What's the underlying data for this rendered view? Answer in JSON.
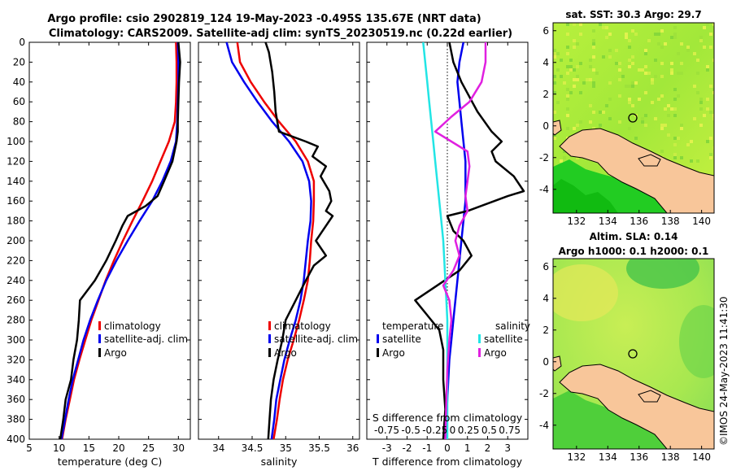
{
  "header": {
    "title_line1": "Argo profile: csio 2902819_124 19-May-2023 -0.495S 135.67E (NRT data)",
    "title_line2": "Climatology: CARS2009. Satellite-adj clim: synTS_20230519.nc (0.22d earlier)"
  },
  "colors": {
    "climatology": "#ee0000",
    "satellite": "#0000ee",
    "argo": "#000000",
    "satellite_salinity": "#22e5e5",
    "argo_salinity": "#e020e0"
  },
  "chart_data": [
    {
      "type": "line",
      "id": "temperature",
      "xlabel": "temperature (deg C)",
      "xlim": [
        5,
        32
      ],
      "xticks": [
        "5",
        "10",
        "15",
        "20",
        "25",
        "30"
      ],
      "ylim": [
        400,
        0
      ],
      "yticks": [
        "0",
        "20",
        "40",
        "60",
        "80",
        "100",
        "120",
        "140",
        "160",
        "180",
        "200",
        "220",
        "240",
        "260",
        "280",
        "300",
        "320",
        "340",
        "360",
        "380",
        "400"
      ],
      "legend": [
        "climatology",
        "satellite-adj. clim",
        "Argo"
      ],
      "series": [
        {
          "name": "climatology",
          "color": "#ee0000",
          "points": [
            [
              29.6,
              0
            ],
            [
              29.7,
              20
            ],
            [
              29.7,
              40
            ],
            [
              29.6,
              60
            ],
            [
              29.4,
              80
            ],
            [
              28.4,
              100
            ],
            [
              27.0,
              120
            ],
            [
              25.6,
              140
            ],
            [
              24.0,
              160
            ],
            [
              22.3,
              180
            ],
            [
              20.7,
              200
            ],
            [
              19.2,
              220
            ],
            [
              17.8,
              240
            ],
            [
              16.6,
              260
            ],
            [
              15.4,
              280
            ],
            [
              14.4,
              300
            ],
            [
              13.4,
              320
            ],
            [
              12.5,
              340
            ],
            [
              11.8,
              360
            ],
            [
              11.1,
              380
            ],
            [
              10.5,
              400
            ]
          ]
        },
        {
          "name": "satellite-adj. clim",
          "color": "#0000ee",
          "points": [
            [
              29.9,
              0
            ],
            [
              30.0,
              20
            ],
            [
              30.0,
              40
            ],
            [
              29.9,
              60
            ],
            [
              29.8,
              80
            ],
            [
              29.6,
              100
            ],
            [
              28.7,
              120
            ],
            [
              27.3,
              140
            ],
            [
              25.6,
              160
            ],
            [
              23.5,
              180
            ],
            [
              21.5,
              200
            ],
            [
              19.6,
              220
            ],
            [
              17.9,
              240
            ],
            [
              16.5,
              260
            ],
            [
              15.2,
              280
            ],
            [
              14.1,
              300
            ],
            [
              13.2,
              320
            ],
            [
              12.3,
              340
            ],
            [
              11.6,
              360
            ],
            [
              11.0,
              380
            ],
            [
              10.4,
              400
            ]
          ]
        },
        {
          "name": "Argo",
          "color": "#000000",
          "points": [
            [
              30.0,
              0
            ],
            [
              30.3,
              20
            ],
            [
              30.1,
              40
            ],
            [
              30.0,
              60
            ],
            [
              29.9,
              80
            ],
            [
              29.9,
              90
            ],
            [
              29.7,
              100
            ],
            [
              29.0,
              120
            ],
            [
              27.6,
              140
            ],
            [
              26.5,
              155
            ],
            [
              24.5,
              165
            ],
            [
              21.5,
              175
            ],
            [
              20.6,
              185
            ],
            [
              19.5,
              200
            ],
            [
              17.9,
              220
            ],
            [
              16.0,
              240
            ],
            [
              13.5,
              260
            ],
            [
              13.3,
              280
            ],
            [
              13.0,
              300
            ],
            [
              12.4,
              320
            ],
            [
              12.0,
              340
            ],
            [
              11.1,
              360
            ],
            [
              10.7,
              380
            ],
            [
              10.2,
              400
            ]
          ]
        }
      ]
    },
    {
      "type": "line",
      "id": "salinity",
      "xlabel": "salinity",
      "xlim": [
        33.7,
        36.1
      ],
      "xticks": [
        "34",
        "34.5",
        "35",
        "35.5",
        "36"
      ],
      "ylim": [
        400,
        0
      ],
      "legend": [
        "climatology",
        "satellite-adj. clim",
        "Argo"
      ],
      "series": [
        {
          "name": "climatology",
          "color": "#ee0000",
          "points": [
            [
              34.28,
              0
            ],
            [
              34.32,
              20
            ],
            [
              34.48,
              40
            ],
            [
              34.68,
              60
            ],
            [
              34.9,
              80
            ],
            [
              35.15,
              100
            ],
            [
              35.33,
              120
            ],
            [
              35.42,
              140
            ],
            [
              35.42,
              160
            ],
            [
              35.41,
              180
            ],
            [
              35.38,
              200
            ],
            [
              35.36,
              220
            ],
            [
              35.33,
              240
            ],
            [
              35.27,
              260
            ],
            [
              35.2,
              280
            ],
            [
              35.12,
              300
            ],
            [
              35.03,
              320
            ],
            [
              34.96,
              340
            ],
            [
              34.91,
              360
            ],
            [
              34.87,
              380
            ],
            [
              34.82,
              400
            ]
          ]
        },
        {
          "name": "satellite-adj. clim",
          "color": "#0000ee",
          "points": [
            [
              34.12,
              0
            ],
            [
              34.2,
              20
            ],
            [
              34.38,
              40
            ],
            [
              34.58,
              60
            ],
            [
              34.8,
              80
            ],
            [
              35.05,
              100
            ],
            [
              35.25,
              120
            ],
            [
              35.35,
              140
            ],
            [
              35.38,
              160
            ],
            [
              35.37,
              180
            ],
            [
              35.33,
              200
            ],
            [
              35.3,
              220
            ],
            [
              35.27,
              240
            ],
            [
              35.22,
              260
            ],
            [
              35.15,
              280
            ],
            [
              35.06,
              300
            ],
            [
              34.98,
              320
            ],
            [
              34.92,
              340
            ],
            [
              34.86,
              360
            ],
            [
              34.83,
              380
            ],
            [
              34.79,
              400
            ]
          ]
        },
        {
          "name": "Argo",
          "color": "#000000",
          "points": [
            [
              34.7,
              0
            ],
            [
              34.75,
              10
            ],
            [
              34.8,
              30
            ],
            [
              34.83,
              50
            ],
            [
              34.85,
              70
            ],
            [
              34.9,
              90
            ],
            [
              35.3,
              100
            ],
            [
              35.48,
              105
            ],
            [
              35.4,
              115
            ],
            [
              35.6,
              125
            ],
            [
              35.52,
              135
            ],
            [
              35.65,
              150
            ],
            [
              35.68,
              160
            ],
            [
              35.6,
              170
            ],
            [
              35.7,
              175
            ],
            [
              35.55,
              190
            ],
            [
              35.45,
              200
            ],
            [
              35.6,
              215
            ],
            [
              35.42,
              225
            ],
            [
              35.3,
              240
            ],
            [
              35.15,
              260
            ],
            [
              35.0,
              280
            ],
            [
              34.95,
              300
            ],
            [
              34.88,
              320
            ],
            [
              34.82,
              340
            ],
            [
              34.78,
              360
            ],
            [
              34.76,
              380
            ],
            [
              34.74,
              400
            ]
          ]
        }
      ]
    },
    {
      "type": "line",
      "id": "difference",
      "xlabel": "T difference from climatology",
      "top_xlabel": "S difference from climatology",
      "xlim": [
        -4,
        4
      ],
      "xticks": [
        "-3",
        "-2",
        "-1",
        "0",
        "1",
        "2",
        "3"
      ],
      "top_xticks": [
        "-0.75",
        "-0.5",
        "-0.25",
        "0",
        "0.25",
        "0.5",
        "0.75"
      ],
      "ylim": [
        400,
        0
      ],
      "legend_temperature_title": "temperature",
      "legend_salinity_title": "salinity",
      "legend": [
        "satellite",
        "Argo",
        "satellite",
        "Argo"
      ],
      "series": [
        {
          "name": "T satellite",
          "color": "#0000ee",
          "points": [
            [
              0.8,
              0
            ],
            [
              0.6,
              20
            ],
            [
              0.5,
              40
            ],
            [
              0.6,
              60
            ],
            [
              0.7,
              80
            ],
            [
              0.8,
              100
            ],
            [
              0.9,
              120
            ],
            [
              0.9,
              140
            ],
            [
              0.9,
              160
            ],
            [
              0.8,
              180
            ],
            [
              0.7,
              200
            ],
            [
              0.6,
              220
            ],
            [
              0.5,
              240
            ],
            [
              0.4,
              260
            ],
            [
              0.3,
              280
            ],
            [
              0.2,
              300
            ],
            [
              0.1,
              320
            ],
            [
              0.05,
              340
            ],
            [
              0.0,
              360
            ],
            [
              -0.05,
              380
            ],
            [
              -0.1,
              400
            ]
          ]
        },
        {
          "name": "T Argo",
          "color": "#000000",
          "points": [
            [
              0.1,
              0
            ],
            [
              0.3,
              20
            ],
            [
              0.7,
              40
            ],
            [
              1.5,
              70
            ],
            [
              2.2,
              90
            ],
            [
              2.7,
              100
            ],
            [
              2.2,
              110
            ],
            [
              2.4,
              120
            ],
            [
              3.3,
              135
            ],
            [
              3.8,
              150
            ],
            [
              3.0,
              155
            ],
            [
              1.0,
              170
            ],
            [
              0.0,
              175
            ],
            [
              0.3,
              190
            ],
            [
              0.8,
              200
            ],
            [
              1.2,
              215
            ],
            [
              0.6,
              230
            ],
            [
              -0.5,
              245
            ],
            [
              -1.6,
              260
            ],
            [
              -1.0,
              275
            ],
            [
              -0.4,
              290
            ],
            [
              -0.2,
              310
            ],
            [
              -0.2,
              340
            ],
            [
              -0.1,
              370
            ],
            [
              -0.2,
              400
            ]
          ]
        },
        {
          "name": "S satellite",
          "color": "#22e5e5",
          "points": [
            [
              -1.2,
              0
            ],
            [
              -1.1,
              20
            ],
            [
              -1.0,
              40
            ],
            [
              -0.9,
              60
            ],
            [
              -0.8,
              80
            ],
            [
              -0.7,
              100
            ],
            [
              -0.6,
              120
            ],
            [
              -0.5,
              140
            ],
            [
              -0.4,
              160
            ],
            [
              -0.3,
              180
            ],
            [
              -0.2,
              200
            ],
            [
              -0.15,
              220
            ],
            [
              -0.1,
              240
            ],
            [
              -0.05,
              260
            ],
            [
              0.0,
              280
            ],
            [
              0.0,
              300
            ],
            [
              0.0,
              320
            ],
            [
              0.0,
              340
            ],
            [
              0.0,
              360
            ],
            [
              0.0,
              380
            ],
            [
              0.0,
              400
            ]
          ]
        },
        {
          "name": "S Argo",
          "color": "#e020e0",
          "points": [
            [
              1.9,
              0
            ],
            [
              1.9,
              20
            ],
            [
              1.7,
              40
            ],
            [
              1.1,
              60
            ],
            [
              0.2,
              75
            ],
            [
              -0.6,
              90
            ],
            [
              0.2,
              100
            ],
            [
              1.0,
              110
            ],
            [
              1.1,
              125
            ],
            [
              1.0,
              140
            ],
            [
              0.9,
              155
            ],
            [
              1.0,
              170
            ],
            [
              0.6,
              185
            ],
            [
              0.4,
              200
            ],
            [
              0.6,
              215
            ],
            [
              0.3,
              230
            ],
            [
              -0.2,
              245
            ],
            [
              0.1,
              260
            ],
            [
              0.2,
              280
            ],
            [
              0.1,
              300
            ],
            [
              0.0,
              330
            ],
            [
              -0.05,
              360
            ],
            [
              -0.1,
              400
            ]
          ]
        }
      ]
    },
    {
      "type": "heatmap",
      "id": "sst_map",
      "title": "sat. SST: 30.3 Argo: 29.7",
      "xticks": [
        "132",
        "134",
        "136",
        "138",
        "140"
      ],
      "yticks": [
        "6",
        "4",
        "2",
        "0",
        "-2",
        "-4"
      ],
      "xlim": [
        130.5,
        140.8
      ],
      "ylim": [
        -5.5,
        6.5
      ],
      "marker": [
        135.67,
        0.5
      ]
    },
    {
      "type": "heatmap",
      "id": "sla_map",
      "title_line1": "Altim. SLA: 0.14",
      "title_line2": "Argo h1000: 0.1 h2000: 0.1",
      "xticks": [
        "132",
        "134",
        "136",
        "138",
        "140"
      ],
      "yticks": [
        "6",
        "4",
        "2",
        "0",
        "-2",
        "-4"
      ],
      "xlim": [
        130.5,
        140.8
      ],
      "ylim": [
        -5.5,
        6.5
      ],
      "marker": [
        135.67,
        0.5
      ]
    }
  ],
  "footer": {
    "credit": "©IMOS 24-May-2023 11:41:30"
  }
}
